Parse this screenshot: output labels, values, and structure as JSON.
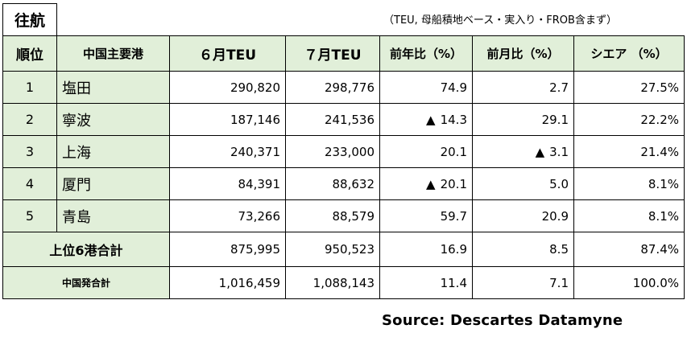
{
  "title": "往航",
  "note": "（TEU, 母船積地ベース・実入り・FROB含まず）",
  "headers": {
    "rank": "順位",
    "port": "中国主要港",
    "june": "６月TEU",
    "july": "７月TEU",
    "yoy": "前年比（%）",
    "mom": "前月比（%）",
    "share": "シエア （%）"
  },
  "rows": [
    {
      "rank": "1",
      "port": "塩田",
      "june": "290,820",
      "july": "298,776",
      "yoy_mark": "",
      "yoy": "74.9",
      "mom_mark": "",
      "mom": "2.7",
      "share": "27.5%"
    },
    {
      "rank": "2",
      "port": "寧波",
      "june": "187,146",
      "july": "241,536",
      "yoy_mark": "▲",
      "yoy": "14.3",
      "mom_mark": "",
      "mom": "29.1",
      "share": "22.2%"
    },
    {
      "rank": "3",
      "port": "上海",
      "june": "240,371",
      "july": "233,000",
      "yoy_mark": "",
      "yoy": "20.1",
      "mom_mark": "▲",
      "mom": "3.1",
      "share": "21.4%"
    },
    {
      "rank": "4",
      "port": "厦門",
      "june": "84,391",
      "july": "88,632",
      "yoy_mark": "▲",
      "yoy": "20.1",
      "mom_mark": "",
      "mom": "5.0",
      "share": "8.1%"
    },
    {
      "rank": "5",
      "port": "青島",
      "june": "73,266",
      "july": "88,579",
      "yoy_mark": "",
      "yoy": "59.7",
      "mom_mark": "",
      "mom": "20.9",
      "share": "8.1%"
    }
  ],
  "top6": {
    "label": "上位6港合計",
    "june": "875,995",
    "july": "950,523",
    "yoy": "16.9",
    "mom": "8.5",
    "share": "87.4%"
  },
  "total": {
    "label": "中国発合計",
    "june": "1,016,459",
    "july": "1,088,143",
    "yoy": "11.4",
    "mom": "7.1",
    "share": "100.0%"
  },
  "source": "Source: Descartes Datamyne"
}
